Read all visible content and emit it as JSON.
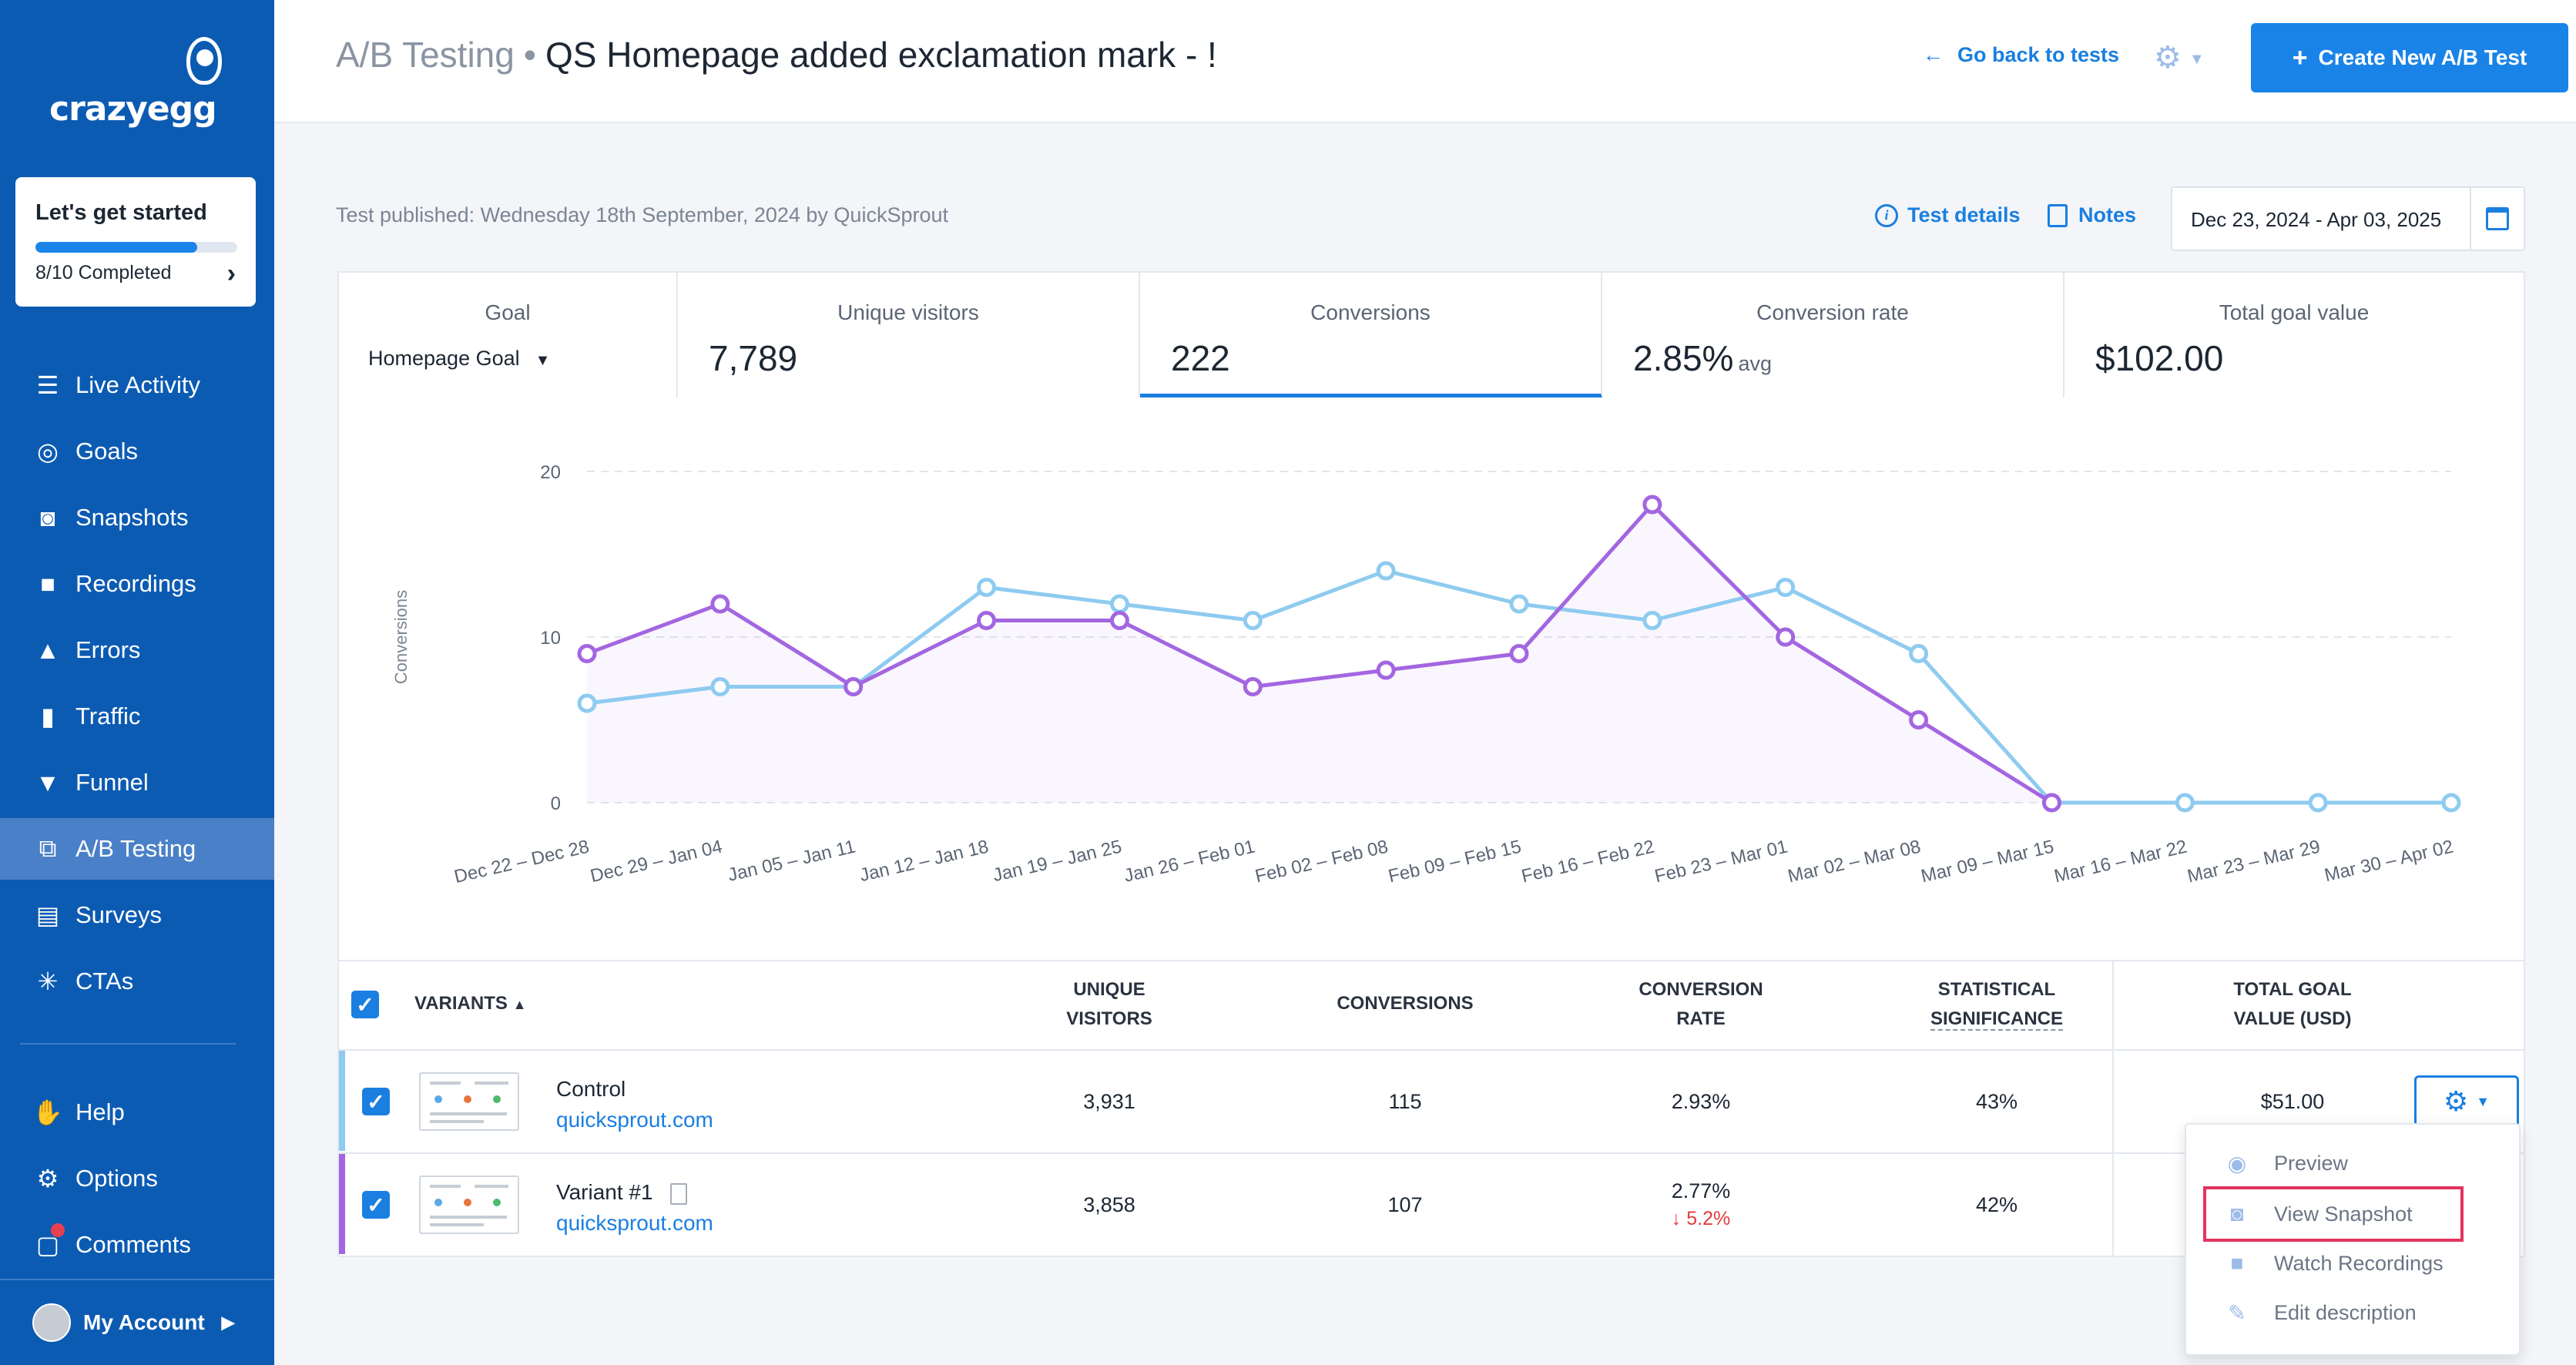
{
  "brand": {
    "name": "crazyegg"
  },
  "onboarding": {
    "title": "Let's get started",
    "progress_text": "8/10 Completed",
    "progress_fraction": 0.8
  },
  "sidebar": {
    "items": [
      {
        "label": "Live Activity",
        "icon": "list-icon"
      },
      {
        "label": "Goals",
        "icon": "target-icon"
      },
      {
        "label": "Snapshots",
        "icon": "camera-icon"
      },
      {
        "label": "Recordings",
        "icon": "video-icon"
      },
      {
        "label": "Errors",
        "icon": "warning-icon"
      },
      {
        "label": "Traffic",
        "icon": "bar-chart-icon"
      },
      {
        "label": "Funnel",
        "icon": "funnel-icon"
      },
      {
        "label": "A/B Testing",
        "icon": "ab-test-icon",
        "active": true
      },
      {
        "label": "Surveys",
        "icon": "survey-icon"
      },
      {
        "label": "CTAs",
        "icon": "cursor-click-icon"
      }
    ],
    "bottom_items": [
      {
        "label": "Help",
        "icon": "hand-icon"
      },
      {
        "label": "Options",
        "icon": "gear-icon"
      },
      {
        "label": "Comments",
        "icon": "chat-icon"
      }
    ],
    "account_label": "My Account"
  },
  "header": {
    "section": "A/B Testing",
    "separator": "•",
    "title": "QS Homepage added exclamation mark - !",
    "back_label": "Go back to tests",
    "create_label": "Create New A/B Test"
  },
  "meta": {
    "published": "Test published: Wednesday 18th September, 2024 by QuickSprout",
    "test_details_label": "Test details",
    "notes_label": "Notes",
    "date_range": "Dec 23, 2024 - Apr 03, 2025"
  },
  "stats": {
    "goal_header": "Goal",
    "goal_value": "Homepage Goal",
    "visitors_header": "Unique visitors",
    "visitors_value": "7,789",
    "conversions_header": "Conversions",
    "conversions_value": "222",
    "rate_header": "Conversion rate",
    "rate_value": "2.85%",
    "rate_suffix": "avg",
    "goal_value_header": "Total goal value",
    "goal_value_value": "$102.00"
  },
  "chart_data": {
    "type": "line",
    "ylabel": "Conversions",
    "ylim": [
      0,
      20
    ],
    "yticks": [
      0,
      10,
      20
    ],
    "grid": true,
    "categories": [
      "Dec 22 – Dec 28",
      "Dec 29 – Jan 04",
      "Jan 05 – Jan 11",
      "Jan 12 – Jan 18",
      "Jan 19 – Jan 25",
      "Jan 26 – Feb 01",
      "Feb 02 – Feb 08",
      "Feb 09 – Feb 15",
      "Feb 16 – Feb 22",
      "Feb 23 – Mar 01",
      "Mar 02 – Mar 08",
      "Mar 09 – Mar 15",
      "Mar 16 – Mar 22",
      "Mar 23 – Mar 29",
      "Mar 30 – Apr 02"
    ],
    "series": [
      {
        "color": "#a366e0",
        "values": [
          9,
          12,
          7,
          11,
          11,
          7,
          8,
          9,
          18,
          10,
          5,
          0,
          null,
          null,
          null
        ]
      },
      {
        "color": "#8ecbf0",
        "values": [
          6,
          7,
          7,
          13,
          12,
          11,
          14,
          12,
          11,
          13,
          9,
          0,
          0,
          0,
          0
        ]
      }
    ]
  },
  "table": {
    "headers": {
      "variants": "VARIANTS",
      "visitors_1": "UNIQUE",
      "visitors_2": "VISITORS",
      "conversions": "CONVERSIONS",
      "rate_1": "CONVERSION",
      "rate_2": "RATE",
      "sig_1": "STATISTICAL",
      "sig_2": "SIGNIFICANCE",
      "value_1": "TOTAL GOAL",
      "value_2": "VALUE (USD)"
    },
    "rows": [
      {
        "name": "Control",
        "link": "quicksprout.com",
        "visitors": "3,931",
        "conversions": "115",
        "rate": "2.93%",
        "change": "",
        "significance": "43%",
        "value": "$51.00",
        "color": "#8ecbf0"
      },
      {
        "name": "Variant #1",
        "link": "quicksprout.com",
        "visitors": "3,858",
        "conversions": "107",
        "rate": "2.77%",
        "change": "↓ 5.2%",
        "significance": "42%",
        "value": "",
        "color": "#a366e0"
      }
    ]
  },
  "menu": {
    "items": [
      {
        "label": "Preview",
        "icon": "eye-icon"
      },
      {
        "label": "View Snapshot",
        "icon": "camera-icon",
        "highlighted": true
      },
      {
        "label": "Watch Recordings",
        "icon": "video-icon"
      },
      {
        "label": "Edit description",
        "icon": "edit-icon"
      }
    ]
  }
}
